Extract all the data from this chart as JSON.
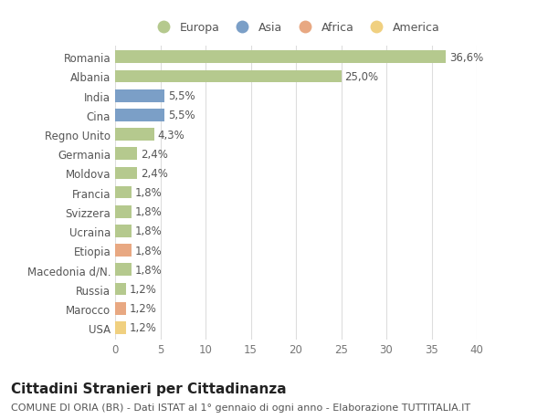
{
  "categories": [
    "Romania",
    "Albania",
    "India",
    "Cina",
    "Regno Unito",
    "Germania",
    "Moldova",
    "Francia",
    "Svizzera",
    "Ucraina",
    "Etiopia",
    "Macedonia d/N.",
    "Russia",
    "Marocco",
    "USA"
  ],
  "values": [
    36.6,
    25.0,
    5.5,
    5.5,
    4.3,
    2.4,
    2.4,
    1.8,
    1.8,
    1.8,
    1.8,
    1.8,
    1.2,
    1.2,
    1.2
  ],
  "labels": [
    "36,6%",
    "25,0%",
    "5,5%",
    "5,5%",
    "4,3%",
    "2,4%",
    "2,4%",
    "1,8%",
    "1,8%",
    "1,8%",
    "1,8%",
    "1,8%",
    "1,2%",
    "1,2%",
    "1,2%"
  ],
  "colors": [
    "#b5c98e",
    "#b5c98e",
    "#7b9fc7",
    "#7b9fc7",
    "#b5c98e",
    "#b5c98e",
    "#b5c98e",
    "#b5c98e",
    "#b5c98e",
    "#b5c98e",
    "#e8a882",
    "#b5c98e",
    "#b5c98e",
    "#e8a882",
    "#f0d080"
  ],
  "legend_labels": [
    "Europa",
    "Asia",
    "Africa",
    "America"
  ],
  "legend_colors": [
    "#b5c98e",
    "#7b9fc7",
    "#e8a882",
    "#f0d080"
  ],
  "title": "Cittadini Stranieri per Cittadinanza",
  "subtitle": "COMUNE DI ORIA (BR) - Dati ISTAT al 1° gennaio di ogni anno - Elaborazione TUTTITALIA.IT",
  "xlim": [
    0,
    40
  ],
  "xticks": [
    0,
    5,
    10,
    15,
    20,
    25,
    30,
    35,
    40
  ],
  "background_color": "#ffffff",
  "plot_bg_color": "#ffffff",
  "grid_color": "#dddddd",
  "bar_height": 0.65,
  "label_fontsize": 8.5,
  "tick_fontsize": 8.5,
  "title_fontsize": 11,
  "subtitle_fontsize": 8
}
